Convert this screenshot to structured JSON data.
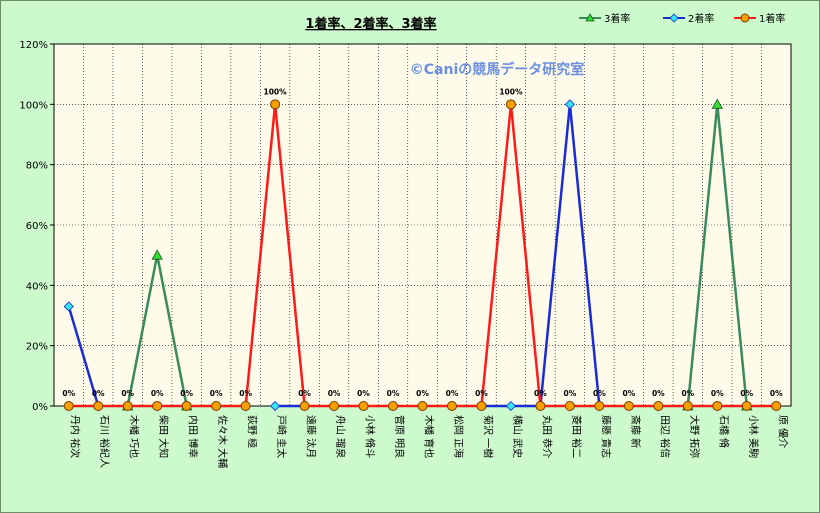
{
  "chart_data": {
    "type": "line",
    "title": "1着率、2着率、3着率",
    "watermark": "©Caniの競馬データ研究室",
    "ylim": [
      0,
      120
    ],
    "yticks": [
      0,
      20,
      40,
      60,
      80,
      100,
      120
    ],
    "ytick_format": "{v}%",
    "grid": true,
    "legend": "top-right",
    "categories": [
      "丹内 祐次",
      "石川 裕紀人",
      "木幡 巧也",
      "柴田 大知",
      "内田 博幸",
      "佐々木 大輔",
      "荻野 極",
      "戸崎 圭太",
      "遠藤 汰月",
      "舟山 瑠泉",
      "小林 脩斗",
      "菅原 明良",
      "木幡 育也",
      "松岡 正海",
      "菊沢 一樹",
      "横山 武史",
      "丸田 恭介",
      "菱田 裕二",
      "藤懸 貴志",
      "斎藤 新",
      "田辺 裕信",
      "大野 拓弥",
      "石橋 脩",
      "小林 美駒",
      "原 優介"
    ],
    "series": [
      {
        "name": "3着率",
        "color": "#3a8a5c",
        "marker": "triangle",
        "marker_color": "#33dd33",
        "values": [
          null,
          null,
          0,
          50,
          0,
          null,
          null,
          null,
          null,
          null,
          null,
          null,
          null,
          null,
          null,
          null,
          null,
          null,
          null,
          null,
          null,
          0,
          100,
          0,
          null
        ]
      },
      {
        "name": "2着率",
        "color": "#1a2bd6",
        "marker": "diamond",
        "marker_color": "#33e6f0",
        "values": [
          33,
          0,
          null,
          null,
          null,
          null,
          null,
          0,
          0,
          null,
          null,
          null,
          null,
          null,
          0,
          0,
          0,
          100,
          0,
          null,
          null,
          null,
          null,
          null,
          null
        ]
      },
      {
        "name": "1着率",
        "color": "#ff1a1a",
        "marker": "circle",
        "marker_color": "#f5a000",
        "values": [
          0,
          0,
          0,
          0,
          0,
          0,
          0,
          100,
          0,
          0,
          0,
          0,
          0,
          0,
          0,
          100,
          0,
          0,
          0,
          0,
          0,
          0,
          0,
          0,
          0
        ]
      }
    ],
    "data_labels": [
      "0%",
      "0%",
      "0%",
      "0%",
      "0%",
      "0%",
      "0%",
      "100%",
      "0%",
      "0%",
      "0%",
      "0%",
      "0%",
      "0%",
      "0%",
      "100%",
      "0%",
      "0%",
      "0%",
      "0%",
      "0%",
      "0%",
      "0%",
      "0%",
      "0%"
    ]
  }
}
